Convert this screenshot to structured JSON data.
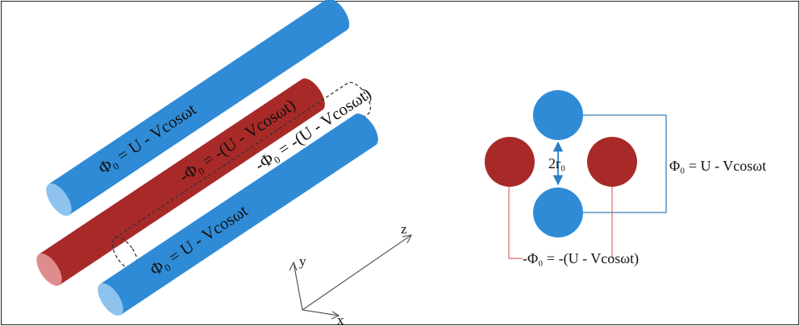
{
  "colors": {
    "blue_rod": "#2f8bd6",
    "blue_rod_end": "#8ec3ee",
    "red_rod": "#a82a28",
    "red_rod_end": "#df8d8c",
    "red_lead": "#e06666",
    "blue_lead": "#3a7fb8",
    "dashed": "#333333"
  },
  "perspective": {
    "rod_top_label": "Φ₀ = U - Vcosωt",
    "rod_middle_label": "-Φ₀ = -(U - Vcosωt)",
    "rod_dashed_label": "-Φ₀ = -(U - Vcosωt)",
    "rod_bottom_label": "Φ₀ = U - Vcosωt"
  },
  "axes": {
    "x": "x",
    "y": "y",
    "z": "z"
  },
  "cross_section": {
    "radius_label": "2r₀",
    "blue_pair_label": "Φ₀ = U - Vcosωt",
    "red_pair_label": "-Φ₀ = -(U - Vcosωt)"
  }
}
